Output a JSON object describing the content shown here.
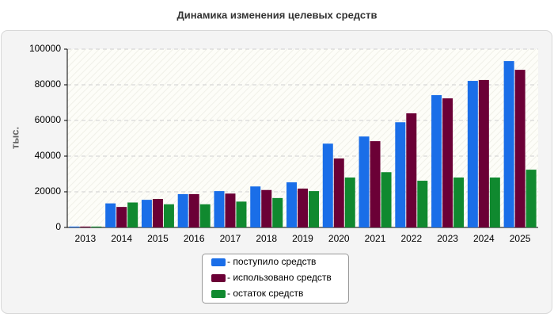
{
  "chart_data": {
    "type": "bar",
    "title": "Динамика изменения целевых средств",
    "ylabel": "тыс.",
    "categories": [
      "2013",
      "2014",
      "2015",
      "2016",
      "2017",
      "2018",
      "2019",
      "2020",
      "2021",
      "2022",
      "2023",
      "2024",
      "2025"
    ],
    "series": [
      {
        "name": "- поступило средств",
        "color": "#1a6ee8",
        "values": [
          500,
          13500,
          15500,
          18700,
          20400,
          23000,
          25300,
          47000,
          51000,
          59000,
          74200,
          82200,
          93300
        ]
      },
      {
        "name": "- использовано средств",
        "color": "#6b0036",
        "values": [
          500,
          11500,
          16000,
          18700,
          19000,
          21000,
          21800,
          38700,
          48400,
          64000,
          72400,
          82700,
          88400
        ]
      },
      {
        "name": "- остаток средств",
        "color": "#10892f",
        "values": [
          500,
          14000,
          13000,
          13000,
          14500,
          16500,
          20400,
          28000,
          31000,
          26200,
          28000,
          28000,
          32400
        ]
      }
    ],
    "ylim": [
      0,
      100000
    ],
    "yticks": [
      0,
      20000,
      40000,
      60000,
      80000,
      100000
    ],
    "grid": true,
    "legend": "bottom"
  }
}
